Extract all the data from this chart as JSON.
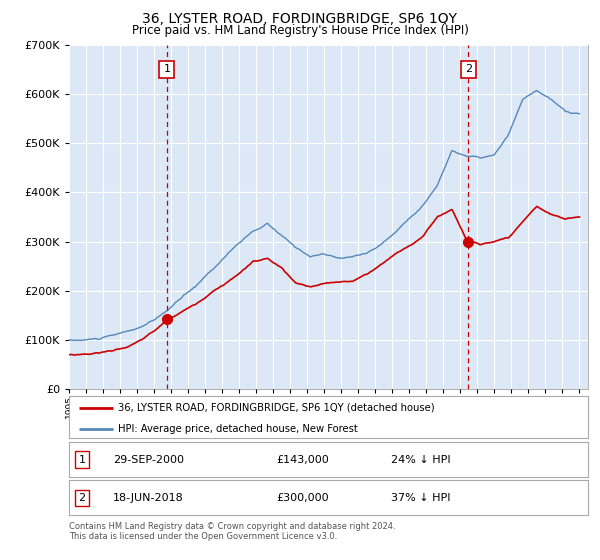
{
  "title": "36, LYSTER ROAD, FORDINGBRIDGE, SP6 1QY",
  "subtitle": "Price paid vs. HM Land Registry's House Price Index (HPI)",
  "legend_line1": "36, LYSTER ROAD, FORDINGBRIDGE, SP6 1QY (detached house)",
  "legend_line2": "HPI: Average price, detached house, New Forest",
  "annotation1_label": "1",
  "annotation1_date": "29-SEP-2000",
  "annotation1_price": "£143,000",
  "annotation1_hpi": "24% ↓ HPI",
  "annotation1_year": 2000.75,
  "annotation1_value": 143000,
  "annotation2_label": "2",
  "annotation2_date": "18-JUN-2018",
  "annotation2_price": "£300,000",
  "annotation2_hpi": "37% ↓ HPI",
  "annotation2_year": 2018.46,
  "annotation2_value": 300000,
  "footer": "Contains HM Land Registry data © Crown copyright and database right 2024.\nThis data is licensed under the Open Government Licence v3.0.",
  "plot_bg_color": "#dce8f5",
  "red_color": "#cc0000",
  "blue_color": "#5588bb",
  "fill_color": "#dce8f5",
  "ylim": [
    0,
    700000
  ],
  "xlim_start": 1995.0,
  "xlim_end": 2025.5,
  "yticks": [
    0,
    100000,
    200000,
    300000,
    400000,
    500000,
    600000,
    700000
  ]
}
